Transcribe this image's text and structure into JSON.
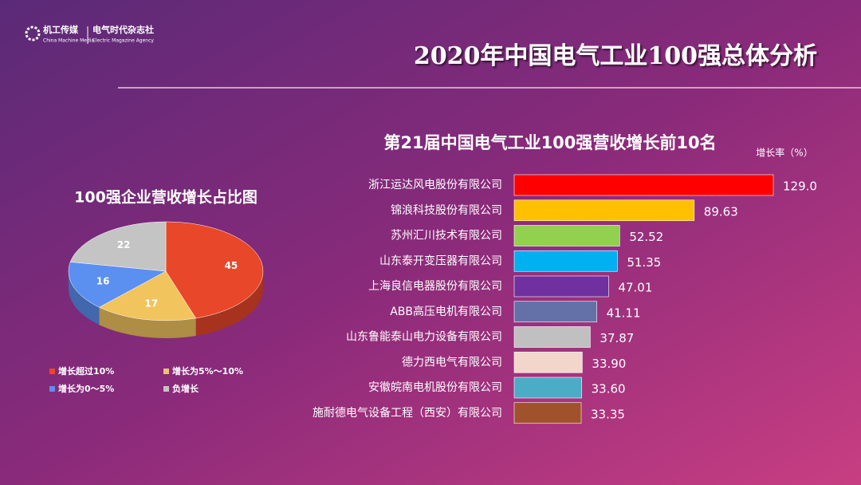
{
  "header": {
    "logo_name": "机工传媒",
    "logo_name_en": "China Machine Media",
    "agency": "电气时代杂志社",
    "agency_en": "Electric Magazine Agency",
    "title": "2020年中国电气工业100强总体分析"
  },
  "chart_data": [
    {
      "type": "pie",
      "title": "100强企业营收增长占比图",
      "categories": [
        "增长超过10%",
        "增长为5%～10%",
        "增长为0～5%",
        "负增长"
      ],
      "values": [
        45,
        17,
        16,
        22
      ],
      "colors": [
        "#e8472a",
        "#f2c45e",
        "#5b8ff0",
        "#c4c4c4"
      ]
    },
    {
      "type": "bar",
      "title": "第21届中国电气工业100强营收增长前10名",
      "unit_label": "增长率（%）",
      "categories": [
        "浙江运达风电股份有限公司",
        "锦浪科技股份有限公司",
        "苏州汇川技术有限公司",
        "山东泰开变压器有限公司",
        "上海良信电器股份有限公司",
        "ABB高压电机有限公司",
        "山东鲁能泰山电力设备有限公司",
        "德力西电气有限公司",
        "安徽皖南电机股份有限公司",
        "施耐德电气设备工程（西安）有限公司"
      ],
      "values": [
        129.0,
        89.63,
        52.52,
        51.35,
        47.01,
        41.11,
        37.87,
        33.9,
        33.6,
        33.35
      ],
      "value_labels": [
        "129.0",
        "89.63",
        "52.52",
        "51.35",
        "47.01",
        "41.11",
        "37.87",
        "33.90",
        "33.60",
        "33.35"
      ],
      "colors": [
        "#ff0000",
        "#ffc000",
        "#92d050",
        "#00b0f0",
        "#7030a0",
        "#6470a8",
        "#c0c0c0",
        "#f2d6cc",
        "#4bacc6",
        "#a0522d"
      ]
    }
  ]
}
